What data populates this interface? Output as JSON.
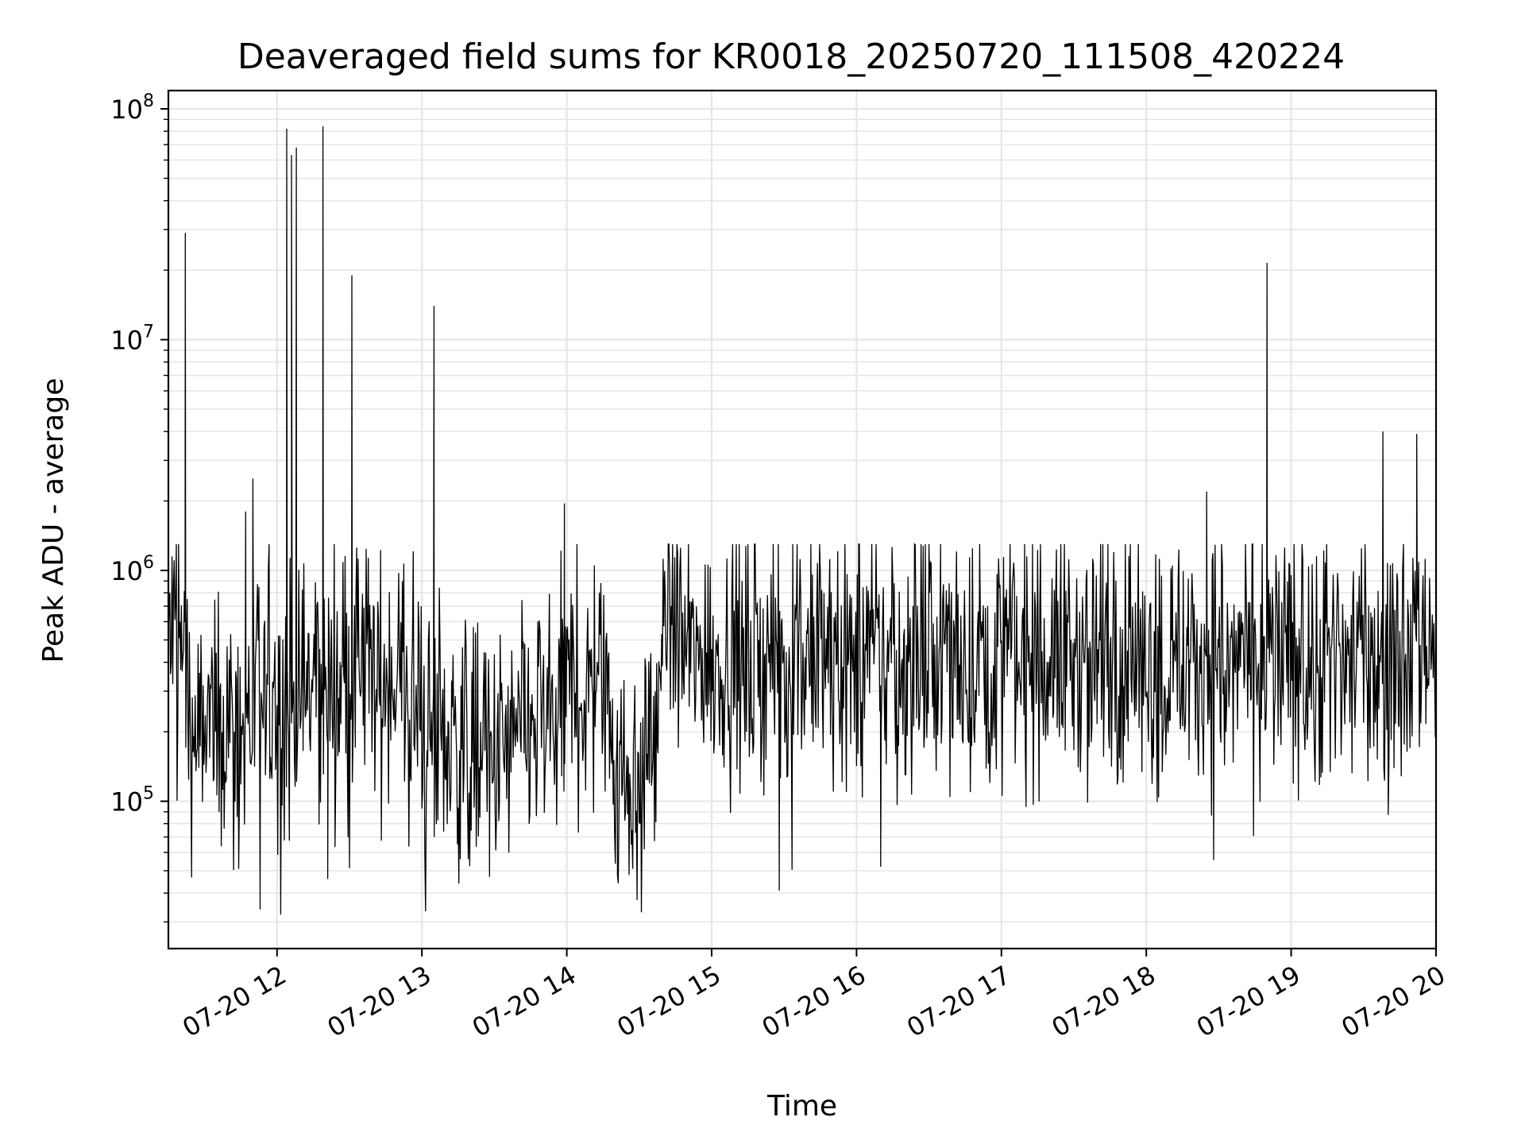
{
  "chart_data": {
    "type": "line",
    "title": "Deaveraged field sums for KR0018_20250720_111508_420224",
    "xlabel": "Time",
    "ylabel": "Peak ADU - average",
    "xlim": [
      "2025-07-20 11:15",
      "2025-07-20 20:00"
    ],
    "ylim": [
      23000,
      120000000
    ],
    "yscale": "log",
    "grid": "both major and minor, light gray",
    "line_color": "#000000",
    "x_ticks": [
      "07-20 12",
      "07-20 13",
      "07-20 14",
      "07-20 15",
      "07-20 16",
      "07-20 17",
      "07-20 18",
      "07-20 19",
      "07-20 20"
    ],
    "y_ticks": [
      {
        "value": 100000,
        "base": "10",
        "exp": "5"
      },
      {
        "value": 1000000,
        "base": "10",
        "exp": "6"
      },
      {
        "value": 10000000,
        "base": "10",
        "exp": "7"
      },
      {
        "value": 100000000,
        "base": "10",
        "exp": "8"
      }
    ],
    "spikes": [
      {
        "x": "2025-07-20 11:22",
        "y": 29000000
      },
      {
        "x": "2025-07-20 11:47",
        "y": 1800000
      },
      {
        "x": "2025-07-20 11:50",
        "y": 2500000
      },
      {
        "x": "2025-07-20 12:04",
        "y": 82000000
      },
      {
        "x": "2025-07-20 12:06",
        "y": 63000000
      },
      {
        "x": "2025-07-20 12:08",
        "y": 68000000
      },
      {
        "x": "2025-07-20 12:19",
        "y": 84000000
      },
      {
        "x": "2025-07-20 12:31",
        "y": 19000000
      },
      {
        "x": "2025-07-20 13:05",
        "y": 14000000
      },
      {
        "x": "2025-07-20 13:59",
        "y": 1950000
      },
      {
        "x": "2025-07-20 18:25",
        "y": 2200000
      },
      {
        "x": "2025-07-20 18:50",
        "y": 21500000
      },
      {
        "x": "2025-07-20 19:38",
        "y": 4000000
      },
      {
        "x": "2025-07-20 19:52",
        "y": 3900000
      }
    ],
    "dips": [
      {
        "x": "2025-07-20 11:53",
        "y": 34000
      },
      {
        "x": "2025-07-20 12:21",
        "y": 46000
      },
      {
        "x": "2025-07-20 13:28",
        "y": 47000
      },
      {
        "x": "2025-07-20 14:21",
        "y": 48000
      },
      {
        "x": "2025-07-20 15:28",
        "y": 41000
      },
      {
        "x": "2025-07-20 16:10",
        "y": 52000
      }
    ],
    "baseline": [
      {
        "x": "2025-07-20 11:15",
        "y": 500000
      },
      {
        "x": "2025-07-20 11:21",
        "y": 500000
      },
      {
        "x": "2025-07-20 11:24",
        "y": 200000
      },
      {
        "x": "2025-07-20 12:00",
        "y": 250000
      },
      {
        "x": "2025-07-20 12:30",
        "y": 350000
      },
      {
        "x": "2025-07-20 12:50",
        "y": 350000
      },
      {
        "x": "2025-07-20 13:00",
        "y": 200000
      },
      {
        "x": "2025-07-20 13:30",
        "y": 150000
      },
      {
        "x": "2025-07-20 13:55",
        "y": 250000
      },
      {
        "x": "2025-07-20 14:15",
        "y": 380000
      },
      {
        "x": "2025-07-20 14:20",
        "y": 150000
      },
      {
        "x": "2025-07-20 14:30",
        "y": 110000
      },
      {
        "x": "2025-07-20 14:38",
        "y": 250000
      },
      {
        "x": "2025-07-20 14:41",
        "y": 750000
      },
      {
        "x": "2025-07-20 14:50",
        "y": 420000
      },
      {
        "x": "2025-07-20 16:00",
        "y": 420000
      },
      {
        "x": "2025-07-20 17:00",
        "y": 420000
      },
      {
        "x": "2025-07-20 18:00",
        "y": 420000
      },
      {
        "x": "2025-07-20 19:00",
        "y": 400000
      },
      {
        "x": "2025-07-20 19:40",
        "y": 420000
      },
      {
        "x": "2025-07-20 20:00",
        "y": 580000
      }
    ]
  }
}
